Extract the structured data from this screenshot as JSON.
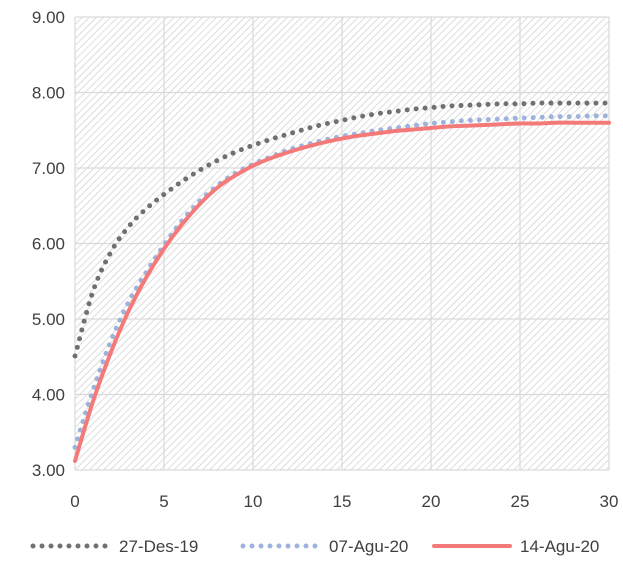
{
  "chart_data": {
    "type": "line",
    "title": "",
    "xlabel": "",
    "ylabel": "",
    "xlim": [
      0,
      30
    ],
    "ylim": [
      3,
      9
    ],
    "x_ticks": [
      0,
      5,
      10,
      15,
      20,
      25,
      30
    ],
    "y_ticks": [
      3,
      4,
      5,
      6,
      7,
      8,
      9
    ],
    "x_tick_labels": [
      "0",
      "5",
      "10",
      "15",
      "20",
      "25",
      "30"
    ],
    "y_tick_labels": [
      "3.00",
      "4.00",
      "5.00",
      "6.00",
      "7.00",
      "8.00",
      "9.00"
    ],
    "grid": true,
    "plot_background": "diagonal-hatch",
    "legend_position": "bottom",
    "x": [
      0,
      1,
      2,
      3,
      4,
      5,
      6,
      7,
      8,
      9,
      10,
      11,
      12,
      13,
      14,
      15,
      16,
      17,
      18,
      19,
      20,
      21,
      22,
      23,
      24,
      25,
      26,
      27,
      28,
      29,
      30
    ],
    "series": [
      {
        "name": "27-Des-19",
        "style": "dotted",
        "color": "#707070",
        "values": [
          4.51,
          5.36,
          5.88,
          6.22,
          6.46,
          6.65,
          6.82,
          6.97,
          7.1,
          7.21,
          7.3,
          7.38,
          7.45,
          7.52,
          7.58,
          7.63,
          7.68,
          7.72,
          7.75,
          7.78,
          7.8,
          7.82,
          7.83,
          7.84,
          7.85,
          7.85,
          7.86,
          7.86,
          7.86,
          7.86,
          7.86
        ]
      },
      {
        "name": "07-Agu-20",
        "style": "dotted",
        "color": "#9db3dc",
        "values": [
          3.3,
          4.05,
          4.7,
          5.22,
          5.62,
          5.98,
          6.3,
          6.56,
          6.77,
          6.93,
          7.05,
          7.15,
          7.24,
          7.31,
          7.37,
          7.42,
          7.46,
          7.5,
          7.53,
          7.56,
          7.59,
          7.61,
          7.63,
          7.64,
          7.65,
          7.66,
          7.67,
          7.68,
          7.68,
          7.69,
          7.69
        ]
      },
      {
        "name": "14-Agu-20",
        "style": "solid",
        "color": "#f47a7a",
        "values": [
          3.12,
          3.9,
          4.55,
          5.1,
          5.55,
          5.93,
          6.25,
          6.52,
          6.74,
          6.9,
          7.03,
          7.13,
          7.21,
          7.28,
          7.34,
          7.39,
          7.43,
          7.46,
          7.49,
          7.51,
          7.53,
          7.55,
          7.56,
          7.57,
          7.58,
          7.59,
          7.59,
          7.6,
          7.6,
          7.6,
          7.6
        ]
      }
    ]
  }
}
